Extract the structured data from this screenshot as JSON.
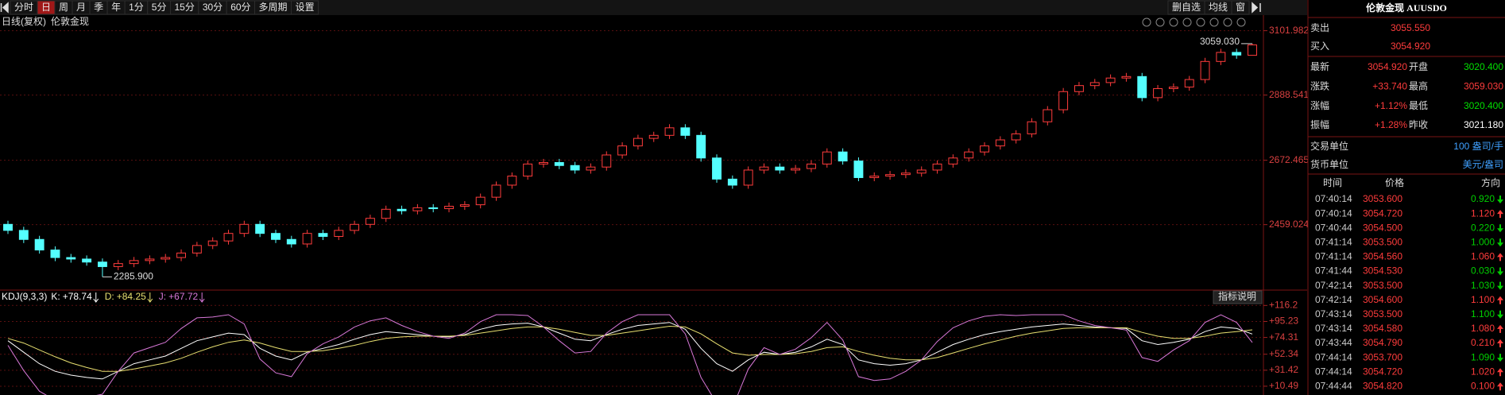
{
  "toolbar": {
    "periods": [
      "分时",
      "日",
      "周",
      "月",
      "季",
      "年",
      "1分",
      "5分",
      "15分",
      "30分",
      "60分",
      "多周期",
      "设置"
    ],
    "active_index": 1,
    "right": [
      "删自选",
      "均线",
      "窗"
    ]
  },
  "chart_data": [
    {
      "type": "candlestick",
      "period": "日线(复权)",
      "name": "伦敦金现",
      "open": [
        2460,
        2440,
        2410,
        2375,
        2350,
        2345,
        2335,
        2320,
        2330,
        2340,
        2345,
        2350,
        2365,
        2390,
        2405,
        2430,
        2460,
        2430,
        2410,
        2395,
        2430,
        2420,
        2440,
        2460,
        2480,
        2510,
        2505,
        2515,
        2512,
        2520,
        2525,
        2550,
        2590,
        2620,
        2660,
        2665,
        2655,
        2640,
        2650,
        2690,
        2720,
        2745,
        2755,
        2780,
        2755,
        2680,
        2610,
        2590,
        2640,
        2650,
        2640,
        2645,
        2660,
        2700,
        2670,
        2615,
        2620,
        2625,
        2630,
        2640,
        2660,
        2680,
        2700,
        2720,
        2740,
        2760,
        2800,
        2840,
        2900,
        2920,
        2930,
        2945,
        2950,
        2880,
        2910,
        2915,
        2940,
        3000,
        3030,
        3020.4
      ],
      "high": [
        2472,
        2452,
        2422,
        2387,
        2362,
        2357,
        2347,
        2342,
        2352,
        2357,
        2362,
        2377,
        2402,
        2417,
        2442,
        2472,
        2472,
        2442,
        2422,
        2442,
        2442,
        2452,
        2472,
        2492,
        2522,
        2522,
        2527,
        2527,
        2532,
        2537,
        2562,
        2602,
        2632,
        2672,
        2677,
        2677,
        2667,
        2662,
        2702,
        2732,
        2757,
        2767,
        2792,
        2792,
        2767,
        2692,
        2622,
        2652,
        2662,
        2662,
        2657,
        2672,
        2712,
        2712,
        2682,
        2632,
        2637,
        2642,
        2652,
        2672,
        2692,
        2712,
        2732,
        2752,
        2772,
        2812,
        2852,
        2912,
        2932,
        2942,
        2957,
        2962,
        2962,
        2922,
        2927,
        2952,
        3012,
        3042,
        3042,
        3059.03
      ],
      "low": [
        2428,
        2398,
        2363,
        2338,
        2333,
        2323,
        2285.9,
        2308,
        2318,
        2328,
        2333,
        2338,
        2353,
        2378,
        2393,
        2418,
        2418,
        2398,
        2383,
        2383,
        2408,
        2408,
        2428,
        2448,
        2468,
        2493,
        2493,
        2500,
        2500,
        2508,
        2513,
        2538,
        2578,
        2608,
        2648,
        2643,
        2628,
        2628,
        2638,
        2678,
        2708,
        2733,
        2743,
        2743,
        2668,
        2598,
        2578,
        2578,
        2628,
        2628,
        2628,
        2633,
        2648,
        2658,
        2603,
        2603,
        2608,
        2613,
        2618,
        2628,
        2648,
        2668,
        2688,
        2708,
        2728,
        2748,
        2788,
        2828,
        2888,
        2908,
        2918,
        2933,
        2868,
        2868,
        2898,
        2903,
        2928,
        2988,
        3009,
        3020.4
      ],
      "close": [
        2440,
        2410,
        2375,
        2350,
        2345,
        2335,
        2320,
        2330,
        2340,
        2345,
        2350,
        2365,
        2390,
        2405,
        2430,
        2460,
        2430,
        2410,
        2395,
        2430,
        2420,
        2440,
        2460,
        2480,
        2510,
        2505,
        2515,
        2512,
        2520,
        2525,
        2550,
        2590,
        2620,
        2660,
        2665,
        2655,
        2640,
        2650,
        2690,
        2720,
        2745,
        2755,
        2780,
        2755,
        2680,
        2610,
        2590,
        2640,
        2650,
        2640,
        2645,
        2660,
        2700,
        2670,
        2615,
        2620,
        2625,
        2630,
        2640,
        2660,
        2680,
        2700,
        2720,
        2740,
        2760,
        2800,
        2840,
        2900,
        2920,
        2930,
        2945,
        2950,
        2880,
        2910,
        2915,
        2940,
        3000,
        3030,
        3021.18,
        3054.92
      ],
      "ylim": [
        2250,
        3151
      ],
      "yticks": [
        3101.982,
        2888.541,
        2672.465,
        2459.024
      ],
      "up_color": "#ff3c3c",
      "down_color": "#54ffff",
      "grid": true,
      "annotations": {
        "high": "3059.030",
        "low": "2285.900"
      }
    },
    {
      "type": "line",
      "title": "KDJ(9,3,3)",
      "button": "指标说明",
      "series": [
        {
          "name": "K:",
          "value_label": "+78.74",
          "color": "#ffffff",
          "values": [
            70,
            55,
            40,
            30,
            25,
            22,
            20,
            30,
            40,
            45,
            50,
            60,
            70,
            75,
            80,
            78,
            60,
            50,
            45,
            55,
            60,
            65,
            72,
            78,
            82,
            80,
            78,
            76,
            75,
            78,
            85,
            90,
            92,
            93,
            88,
            80,
            72,
            70,
            78,
            85,
            90,
            92,
            94,
            85,
            60,
            40,
            30,
            45,
            55,
            52,
            55,
            62,
            72,
            65,
            45,
            40,
            38,
            40,
            45,
            55,
            65,
            72,
            78,
            82,
            85,
            88,
            90,
            92,
            90,
            88,
            87,
            86,
            70,
            65,
            68,
            72,
            82,
            88,
            86,
            78.74
          ]
        },
        {
          "name": "D:",
          "value_label": "+84.25",
          "color": "#e8e070",
          "values": [
            73,
            67,
            58,
            49,
            41,
            35,
            30,
            30,
            33,
            37,
            41,
            47,
            55,
            62,
            68,
            71,
            67,
            61,
            56,
            56,
            57,
            60,
            64,
            69,
            73,
            75,
            76,
            76,
            76,
            77,
            80,
            83,
            86,
            88,
            88,
            85,
            81,
            77,
            77,
            80,
            83,
            86,
            89,
            88,
            79,
            66,
            54,
            51,
            52,
            52,
            53,
            56,
            61,
            62,
            56,
            51,
            47,
            45,
            45,
            48,
            54,
            60,
            66,
            71,
            76,
            80,
            83,
            86,
            87,
            87,
            87,
            87,
            81,
            76,
            73,
            73,
            76,
            80,
            82,
            84.25
          ]
        },
        {
          "name": "J:",
          "value_label": "+67.72",
          "color": "#d878d8",
          "values": [
            64,
            31,
            4,
            -8,
            -7,
            -4,
            0,
            30,
            54,
            61,
            68,
            86,
            100,
            101,
            104,
            92,
            46,
            28,
            23,
            53,
            66,
            75,
            88,
            96,
            100,
            90,
            82,
            76,
            73,
            80,
            95,
            104,
            104,
            103,
            88,
            70,
            54,
            56,
            80,
            95,
            104,
            104,
            104,
            79,
            22,
            -12,
            -18,
            33,
            61,
            52,
            59,
            74,
            94,
            71,
            23,
            18,
            20,
            30,
            45,
            69,
            87,
            96,
            102,
            104,
            103,
            104,
            104,
            104,
            96,
            90,
            87,
            84,
            48,
            43,
            58,
            70,
            94,
            104,
            94,
            67.72
          ]
        }
      ],
      "ylim": [
        -1,
        129
      ],
      "yticks": [
        {
          "value": 116.2,
          "label": "+116.2"
        },
        {
          "value": 95.23,
          "label": "+95.23"
        },
        {
          "value": 74.31,
          "label": "+74.31"
        },
        {
          "value": 52.34,
          "label": "+52.34"
        },
        {
          "value": 31.42,
          "label": "+31.42"
        },
        {
          "value": 10.49,
          "label": "+10.49"
        }
      ],
      "grid": true
    }
  ],
  "quote_panel": {
    "title": "伦敦金现 AUUSDO",
    "bid_ask": [
      {
        "label": "卖出",
        "value": "3055.550"
      },
      {
        "label": "买入",
        "value": "3054.920"
      }
    ],
    "stats": [
      [
        "最新",
        "3054.920",
        "开盘",
        "3020.400"
      ],
      [
        "涨跌",
        "+33.740",
        "最高",
        "3059.030"
      ],
      [
        "涨幅",
        "+1.12%",
        "最低",
        "3020.400"
      ],
      [
        "振幅",
        "+1.28%",
        "昨收",
        "3021.180"
      ]
    ],
    "stat_colors": [
      [
        "#ff3c3c",
        "#00e000"
      ],
      [
        "#ff3c3c",
        "#ff3c3c"
      ],
      [
        "#ff3c3c",
        "#00e000"
      ],
      [
        "#ff3c3c",
        "#ffffff"
      ]
    ],
    "units": [
      [
        "交易单位",
        "100 盎司/手"
      ],
      [
        "货币单位",
        "美元/盎司"
      ]
    ],
    "trade_header": [
      "时间",
      "价格",
      "方向"
    ],
    "trades": [
      [
        "07:40:14",
        "3053.600",
        "0.920",
        "down"
      ],
      [
        "07:40:14",
        "3054.720",
        "1.120",
        "up"
      ],
      [
        "07:40:44",
        "3054.500",
        "0.220",
        "down"
      ],
      [
        "07:41:14",
        "3053.500",
        "1.000",
        "down"
      ],
      [
        "07:41:14",
        "3054.560",
        "1.060",
        "up"
      ],
      [
        "07:41:44",
        "3054.530",
        "0.030",
        "down"
      ],
      [
        "07:42:14",
        "3053.500",
        "1.030",
        "down"
      ],
      [
        "07:42:14",
        "3054.600",
        "1.100",
        "up"
      ],
      [
        "07:43:14",
        "3053.500",
        "1.100",
        "down"
      ],
      [
        "07:43:14",
        "3054.580",
        "1.080",
        "up"
      ],
      [
        "07:43:44",
        "3054.790",
        "0.210",
        "up"
      ],
      [
        "07:44:14",
        "3053.700",
        "1.090",
        "down"
      ],
      [
        "07:44:14",
        "3054.720",
        "1.020",
        "up"
      ],
      [
        "07:44:44",
        "3054.820",
        "0.100",
        "up"
      ]
    ]
  }
}
